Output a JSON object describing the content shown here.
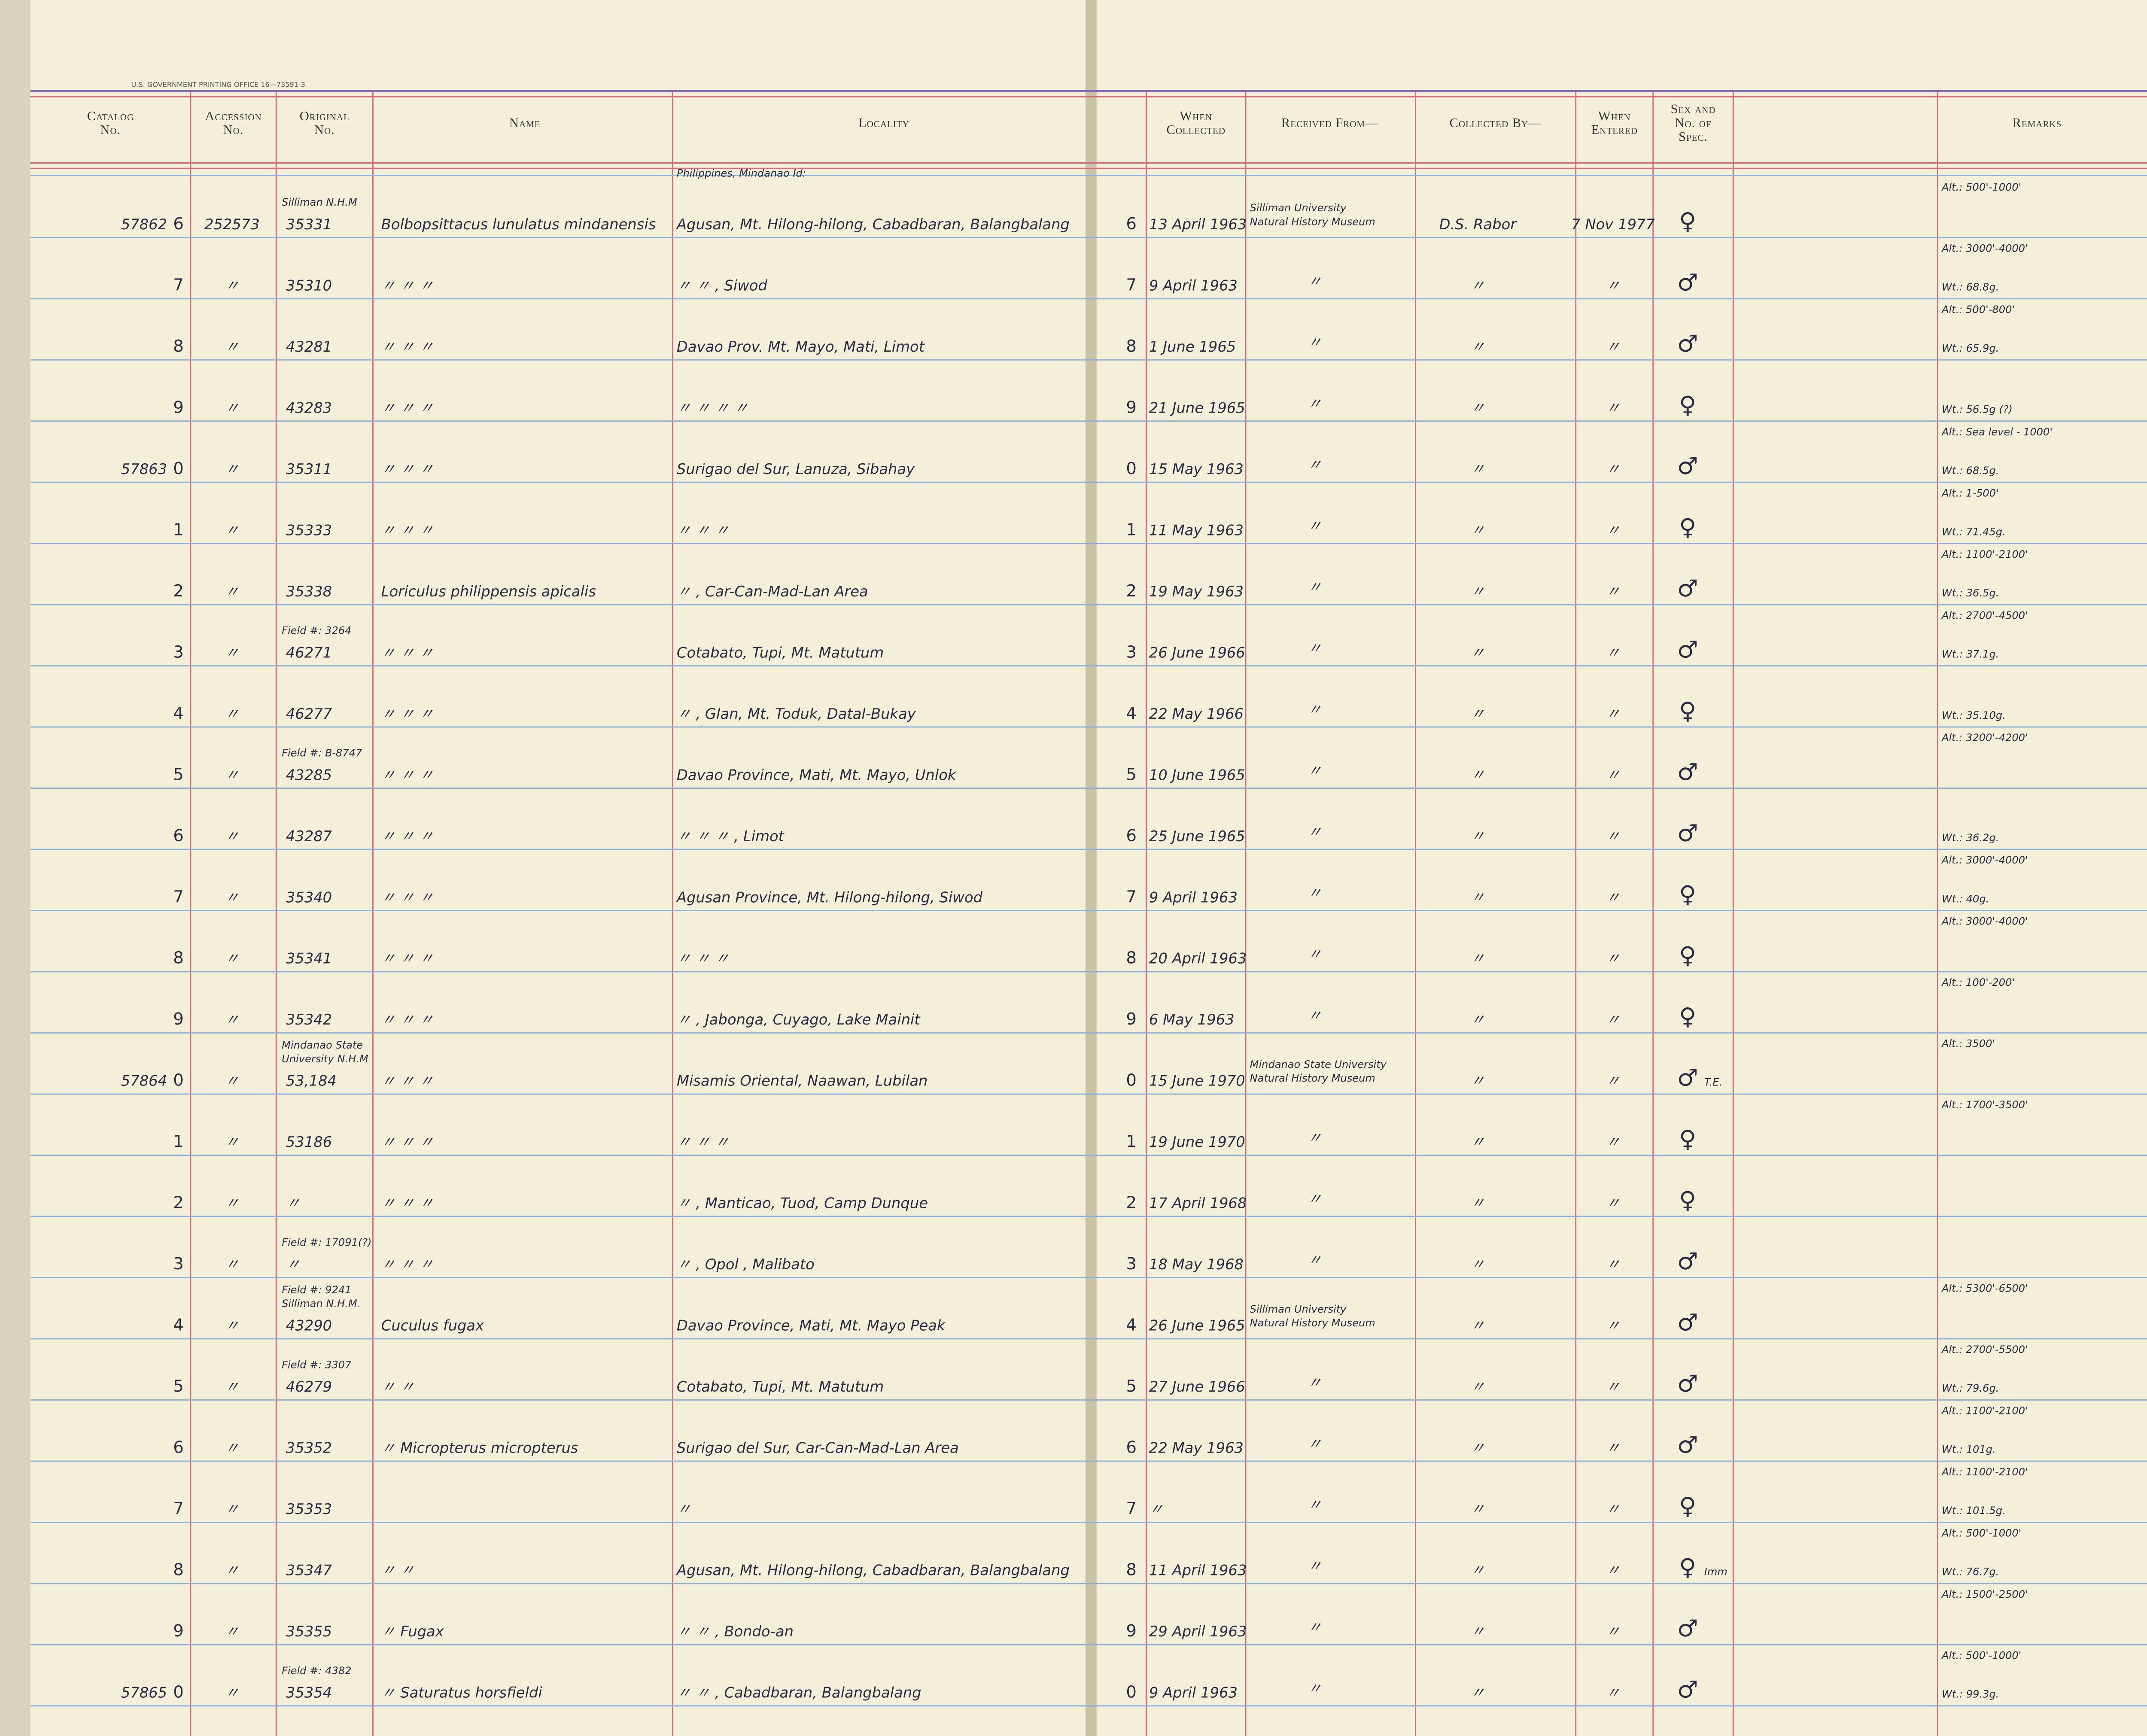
{
  "printing_office": "U.S. GOVERNMENT PRINTING OFFICE   16—73591-3",
  "headers": [
    [
      "Catalog",
      "No."
    ],
    [
      "Accession",
      "No."
    ],
    [
      "Original",
      "No."
    ],
    [
      "Name"
    ],
    [
      "Locality"
    ],
    [
      "When",
      "Collected"
    ],
    [
      "Received From—"
    ],
    [
      "Collected By—"
    ],
    [
      "When",
      "Entered"
    ],
    [
      "Sex and",
      "No. of",
      "Spec."
    ],
    [
      "Remarks"
    ]
  ],
  "rows": [
    {
      "prefix": "57862",
      "digit": "6",
      "accession": "252573",
      "original_note": [
        "Silliman N.H.M"
      ],
      "original": "35331",
      "name": "Bolbopsittacus lunulatus mindanensis",
      "locality_note": "Philippines, Mindanao Id:",
      "locality": "Agusan, Mt. Hilong-hilong, Cabadbaran, Balangbalang",
      "line": "6",
      "date": "13 April 1963",
      "received": [
        "Silliman University",
        "Natural History Museum"
      ],
      "collected": "D.S. Rabor",
      "entered": "7 Nov 1977",
      "sex": "♀",
      "alt": "Alt.: 500'-1000'"
    },
    {
      "digit": "7",
      "accession": "〃",
      "original": "35310",
      "name": "〃      〃      〃",
      "locality": "〃        〃 , Siwod",
      "line": "7",
      "date": "9 April 1963",
      "received": [
        "〃"
      ],
      "collected": "〃",
      "entered": "〃",
      "sex": "♂",
      "alt": "Alt.: 3000'-4000'",
      "wt": "Wt.: 68.8g."
    },
    {
      "digit": "8",
      "accession": "〃",
      "original": "43281",
      "name": "〃      〃      〃",
      "locality": "Davao Prov. Mt. Mayo, Mati, Limot",
      "line": "8",
      "date": "1 June 1965",
      "received": [
        "〃"
      ],
      "collected": "〃",
      "entered": "〃",
      "sex": "♂",
      "alt": "Alt.: 500'-800'",
      "wt": "Wt.: 65.9g."
    },
    {
      "digit": "9",
      "accession": "〃",
      "original": "43283",
      "name": "〃      〃      〃",
      "locality": "〃     〃     〃     〃",
      "line": "9",
      "date": "21 June 1965",
      "received": [
        "〃"
      ],
      "collected": "〃",
      "entered": "〃",
      "sex": "♀",
      "wt": "Wt.: 56.5g (?)"
    },
    {
      "prefix": "57863",
      "digit": "0",
      "accession": "〃",
      "original": "35311",
      "name": "〃      〃      〃",
      "locality": "Surigao del Sur, Lanuza, Sibahay",
      "line": "0",
      "date": "15 May 1963",
      "received": [
        "〃"
      ],
      "collected": "〃",
      "entered": "〃",
      "sex": "♂",
      "alt": "Alt.: Sea level - 1000'",
      "wt": "Wt.: 68.5g."
    },
    {
      "digit": "1",
      "accession": "〃",
      "original": "35333",
      "name": "〃      〃      〃",
      "locality": "〃      〃      〃",
      "line": "1",
      "date": "11 May 1963",
      "received": [
        "〃"
      ],
      "collected": "〃",
      "entered": "〃",
      "sex": "♀",
      "alt": "Alt.: 1-500'",
      "wt": "Wt.: 71.45g."
    },
    {
      "digit": "2",
      "accession": "〃",
      "original": "35338",
      "name": "Loriculus philippensis apicalis",
      "locality": "〃 , Car-Can-Mad-Lan Area",
      "line": "2",
      "date": "19 May 1963",
      "received": [
        "〃"
      ],
      "collected": "〃",
      "entered": "〃",
      "sex": "♂",
      "alt": "Alt.: 1100'-2100'",
      "wt": "Wt.: 36.5g."
    },
    {
      "digit": "3",
      "accession": "〃",
      "original_note": [
        "Field #: 3264"
      ],
      "original": "46271",
      "name": "〃      〃      〃",
      "locality": "Cotabato, Tupi, Mt. Matutum",
      "line": "3",
      "date": "26 June 1966",
      "received": [
        "〃"
      ],
      "collected": "〃",
      "entered": "〃",
      "sex": "♂",
      "alt": "Alt.: 2700'-4500'",
      "wt": "Wt.: 37.1g."
    },
    {
      "digit": "4",
      "accession": "〃",
      "original": "46277",
      "name": "〃      〃      〃",
      "locality": "〃 , Glan, Mt. Toduk, Datal-Bukay",
      "line": "4",
      "date": "22 May 1966",
      "received": [
        "〃"
      ],
      "collected": "〃",
      "entered": "〃",
      "sex": "♀",
      "wt": "Wt.: 35.10g."
    },
    {
      "digit": "5",
      "accession": "〃",
      "original_note": [
        "Field #: B-8747"
      ],
      "original": "43285",
      "name": "〃      〃      〃",
      "locality": "Davao Province, Mati, Mt. Mayo, Unlok",
      "line": "5",
      "date": "10 June 1965",
      "received": [
        "〃"
      ],
      "collected": "〃",
      "entered": "〃",
      "sex": "♂",
      "alt": "Alt.: 3200'-4200'"
    },
    {
      "digit": "6",
      "accession": "〃",
      "original": "43287",
      "name": "〃      〃      〃",
      "locality": "〃      〃      〃 , Limot",
      "line": "6",
      "date": "25 June 1965",
      "received": [
        "〃"
      ],
      "collected": "〃",
      "entered": "〃",
      "sex": "♂",
      "wt": "Wt.: 36.2g."
    },
    {
      "digit": "7",
      "accession": "〃",
      "original": "35340",
      "name": "〃      〃      〃",
      "locality": "Agusan Province, Mt. Hilong-hilong, Siwod",
      "line": "7",
      "date": "9 April 1963",
      "received": [
        "〃"
      ],
      "collected": "〃",
      "entered": "〃",
      "sex": "♀",
      "alt": "Alt.: 3000'-4000'",
      "wt": "Wt.: 40g."
    },
    {
      "digit": "8",
      "accession": "〃",
      "original": "35341",
      "name": "〃      〃      〃",
      "locality": "〃      〃      〃",
      "line": "8",
      "date": "20 April 1963",
      "received": [
        "〃"
      ],
      "collected": "〃",
      "entered": "〃",
      "sex": "♀",
      "alt": "Alt.: 3000'-4000'"
    },
    {
      "digit": "9",
      "accession": "〃",
      "original": "35342",
      "name": "〃      〃      〃",
      "locality": "〃 , Jabonga, Cuyago, Lake Mainit",
      "line": "9",
      "date": "6 May 1963",
      "received": [
        "〃"
      ],
      "collected": "〃",
      "entered": "〃",
      "sex": "♀",
      "alt": "Alt.: 100'-200'"
    },
    {
      "prefix": "57864",
      "digit": "0",
      "accession": "〃",
      "original_note": [
        "Mindanao State",
        "University N.H.M"
      ],
      "original": "53,184",
      "name": "〃      〃      〃",
      "locality": "Misamis Oriental, Naawan, Lubilan",
      "line": "0",
      "date": "15 June 1970",
      "received": [
        "Mindanao State University",
        "Natural History Museum"
      ],
      "collected": "〃",
      "entered": "〃",
      "sex": "♂",
      "sex_note": "T.E.",
      "alt": "Alt.: 3500'"
    },
    {
      "digit": "1",
      "accession": "〃",
      "original": "53186",
      "name": "〃      〃      〃",
      "locality": "〃      〃      〃",
      "line": "1",
      "date": "19 June 1970",
      "received": [
        "〃"
      ],
      "collected": "〃",
      "entered": "〃",
      "sex": "♀",
      "alt": "Alt.: 1700'-3500'"
    },
    {
      "digit": "2",
      "accession": "〃",
      "original": "〃",
      "name": "〃      〃      〃",
      "locality": "〃 , Manticao, Tuod, Camp Dunque",
      "line": "2",
      "date": "17 April 1968",
      "received": [
        "〃"
      ],
      "collected": "〃",
      "entered": "〃",
      "sex": "♀"
    },
    {
      "digit": "3",
      "accession": "〃",
      "original_note": [
        "Field #: 17091(?)"
      ],
      "original": "〃",
      "name": "〃      〃      〃",
      "locality": "〃 , Opol , Malibato",
      "line": "3",
      "date": "18 May 1968",
      "received": [
        "〃"
      ],
      "collected": "〃",
      "entered": "〃",
      "sex": "♂"
    },
    {
      "digit": "4",
      "accession": "〃",
      "original_note": [
        "Field #: 9241",
        "Silliman N.H.M."
      ],
      "original": "43290",
      "name": "Cuculus fugax",
      "locality": "Davao Province, Mati, Mt. Mayo Peak",
      "line": "4",
      "date": "26 June 1965",
      "received": [
        "Silliman University",
        "Natural History Museum"
      ],
      "collected": "〃",
      "entered": "〃",
      "sex": "♂",
      "alt": "Alt.: 5300'-6500'"
    },
    {
      "digit": "5",
      "accession": "〃",
      "original_note": [
        "Field #: 3307"
      ],
      "original": "46279",
      "name": "〃      〃",
      "locality": "Cotabato, Tupi, Mt. Matutum",
      "line": "5",
      "date": "27 June 1966",
      "received": [
        "〃"
      ],
      "collected": "〃",
      "entered": "〃",
      "sex": "♂",
      "alt": "Alt.: 2700'-5500'",
      "wt": "Wt.: 79.6g."
    },
    {
      "digit": "6",
      "accession": "〃",
      "original": "35352",
      "name": "〃       Micropterus micropterus",
      "locality": "Surigao del Sur, Car-Can-Mad-Lan Area",
      "line": "6",
      "date": "22 May 1963",
      "received": [
        "〃"
      ],
      "collected": "〃",
      "entered": "〃",
      "sex": "♂",
      "alt": "Alt.: 1100'-2100'",
      "wt": "Wt.: 101g."
    },
    {
      "digit": "7",
      "accession": "〃",
      "original": "35353",
      "locality": "〃",
      "line": "7",
      "date": "〃",
      "received": [
        "〃"
      ],
      "collected": "〃",
      "entered": "〃",
      "sex": "♀",
      "alt": "Alt.: 1100'-2100'",
      "wt": "Wt.: 101.5g."
    },
    {
      "digit": "8",
      "accession": "〃",
      "original": "35347",
      "name": "〃      〃",
      "locality": "Agusan, Mt. Hilong-hilong, Cabadbaran, Balangbalang",
      "line": "8",
      "date": "11 April 1963",
      "received": [
        "〃"
      ],
      "collected": "〃",
      "entered": "〃",
      "sex": "♀",
      "sex_note": "Imm",
      "alt": "Alt.: 500'-1000'",
      "wt": "Wt.: 76.7g."
    },
    {
      "digit": "9",
      "accession": "〃",
      "original": "35355",
      "name": "〃        Fugax",
      "locality": "〃      〃 , Bondo-an",
      "line": "9",
      "date": "29 April 1963",
      "received": [
        "〃"
      ],
      "collected": "〃",
      "entered": "〃",
      "sex": "♂",
      "alt": "Alt.: 1500'-2500'"
    },
    {
      "prefix": "57865",
      "digit": "0",
      "accession": "〃",
      "original_note": [
        "Field #: 4382"
      ],
      "original": "35354",
      "name": "〃      Saturatus horsfieldi",
      "locality": "〃     〃 , Cabadbaran, Balangbalang",
      "line": "0",
      "date": "9 April 1963",
      "received": [
        "〃"
      ],
      "collected": "〃",
      "entered": "〃",
      "sex": "♂",
      "alt": "Alt.: 500'-1000'",
      "wt": "Wt.: 99.3g."
    }
  ]
}
